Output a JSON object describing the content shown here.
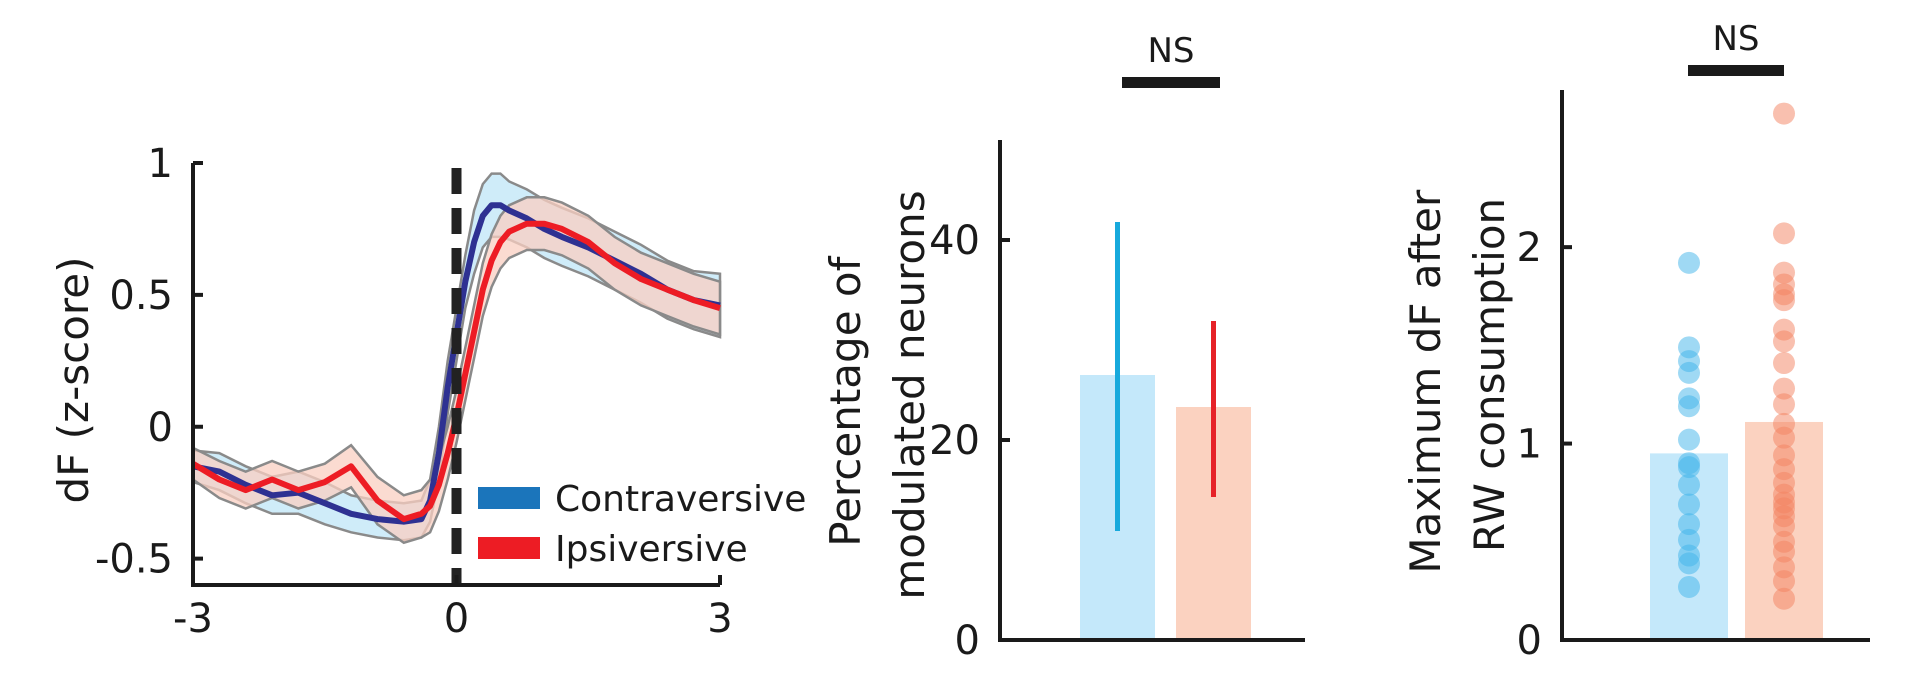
{
  "chart_data": [
    {
      "type": "line",
      "title": "",
      "xlabel": "",
      "ylabel": "dF (z-score)",
      "xlim": [
        -3,
        3
      ],
      "ylim": [
        -0.6,
        1.0
      ],
      "x_ticks": [
        -3,
        0,
        3
      ],
      "x_tick_labels": [
        "-3",
        "0",
        "3"
      ],
      "y_ticks": [
        -0.5,
        0,
        0.5,
        1
      ],
      "y_tick_labels": [
        "-0.5",
        "0",
        "0.5",
        "1"
      ],
      "event_line_x": 0,
      "legend_position": "bottom-right",
      "x": [
        -3.0,
        -2.7,
        -2.4,
        -2.1,
        -1.8,
        -1.5,
        -1.2,
        -0.9,
        -0.6,
        -0.4,
        -0.3,
        -0.2,
        -0.1,
        0.0,
        0.1,
        0.2,
        0.3,
        0.4,
        0.5,
        0.6,
        0.8,
        1.0,
        1.2,
        1.5,
        1.8,
        2.1,
        2.4,
        2.7,
        3.0
      ],
      "series": [
        {
          "name": "Contraversive",
          "color": "#1b75bb",
          "line_color": "#2e3192",
          "band_color": "#bfe6f7",
          "values": [
            -0.15,
            -0.17,
            -0.22,
            -0.26,
            -0.25,
            -0.29,
            -0.33,
            -0.35,
            -0.36,
            -0.35,
            -0.28,
            -0.1,
            0.15,
            0.35,
            0.55,
            0.7,
            0.8,
            0.84,
            0.84,
            0.82,
            0.79,
            0.75,
            0.72,
            0.68,
            0.63,
            0.58,
            0.52,
            0.48,
            0.46
          ],
          "lower": [
            -0.21,
            -0.24,
            -0.29,
            -0.33,
            -0.33,
            -0.37,
            -0.4,
            -0.42,
            -0.43,
            -0.42,
            -0.36,
            -0.2,
            0.05,
            0.25,
            0.45,
            0.58,
            0.68,
            0.72,
            0.72,
            0.71,
            0.68,
            0.64,
            0.61,
            0.57,
            0.52,
            0.47,
            0.41,
            0.37,
            0.34
          ],
          "upper": [
            -0.09,
            -0.1,
            -0.15,
            -0.19,
            -0.17,
            -0.21,
            -0.26,
            -0.28,
            -0.29,
            -0.28,
            -0.2,
            0.0,
            0.25,
            0.45,
            0.65,
            0.82,
            0.92,
            0.96,
            0.96,
            0.93,
            0.9,
            0.86,
            0.83,
            0.79,
            0.74,
            0.69,
            0.63,
            0.59,
            0.58
          ]
        },
        {
          "name": "Ipsiversive",
          "color": "#ed1c24",
          "line_color": "#ed1c24",
          "band_color": "#f9cfc2",
          "values": [
            -0.14,
            -0.2,
            -0.24,
            -0.2,
            -0.24,
            -0.21,
            -0.15,
            -0.28,
            -0.35,
            -0.33,
            -0.3,
            -0.22,
            -0.1,
            0.04,
            0.2,
            0.36,
            0.52,
            0.63,
            0.7,
            0.74,
            0.77,
            0.77,
            0.75,
            0.7,
            0.62,
            0.56,
            0.52,
            0.48,
            0.45
          ],
          "lower": [
            -0.2,
            -0.27,
            -0.31,
            -0.27,
            -0.31,
            -0.28,
            -0.23,
            -0.37,
            -0.44,
            -0.42,
            -0.4,
            -0.32,
            -0.2,
            -0.06,
            0.1,
            0.26,
            0.42,
            0.53,
            0.6,
            0.64,
            0.67,
            0.67,
            0.65,
            0.6,
            0.52,
            0.46,
            0.42,
            0.38,
            0.35
          ],
          "upper": [
            -0.08,
            -0.13,
            -0.17,
            -0.13,
            -0.17,
            -0.14,
            -0.07,
            -0.19,
            -0.26,
            -0.24,
            -0.2,
            -0.12,
            0.0,
            0.14,
            0.3,
            0.46,
            0.62,
            0.73,
            0.8,
            0.84,
            0.87,
            0.87,
            0.85,
            0.8,
            0.72,
            0.66,
            0.62,
            0.58,
            0.55
          ]
        }
      ]
    },
    {
      "type": "bar",
      "title": "",
      "xlabel": "",
      "ylabel": "Percentage of modulated neurons",
      "ylabel_lines": [
        "Percentage of",
        "modulated neurons"
      ],
      "ylim": [
        0,
        50
      ],
      "y_ticks": [
        0,
        20,
        40
      ],
      "y_tick_labels": [
        "0",
        "20",
        "40"
      ],
      "categories": [
        "Contraversive",
        "Ipsiversive"
      ],
      "values": [
        26.5,
        23.3
      ],
      "error_low": [
        10.9,
        14.3
      ],
      "error_high": [
        41.8,
        31.9
      ],
      "bar_colors": [
        "#c4e8fa",
        "#fbd2c0"
      ],
      "error_colors": [
        "#17a9dc",
        "#e62228"
      ],
      "significance": "NS"
    },
    {
      "type": "bar",
      "title": "",
      "xlabel": "",
      "ylabel": "Maximum dF after RW consumption",
      "ylabel_lines": [
        "Maximum dF after",
        "RW consumption"
      ],
      "ylim": [
        0,
        2.8
      ],
      "y_ticks": [
        0,
        1,
        2
      ],
      "y_tick_labels": [
        "0",
        "1",
        "2"
      ],
      "categories": [
        "Contraversive",
        "Ipsiversive"
      ],
      "values": [
        0.95,
        1.11
      ],
      "bar_colors": [
        "#c4e8fa",
        "#fbd2c0"
      ],
      "point_colors": [
        "#40b3ea",
        "#f4825f"
      ],
      "points": [
        [
          1.92,
          1.49,
          1.42,
          1.36,
          1.23,
          1.19,
          1.02,
          0.9,
          0.88,
          0.79,
          0.69,
          0.59,
          0.51,
          0.43,
          0.39,
          0.27
        ],
        [
          2.68,
          2.07,
          1.87,
          1.81,
          1.76,
          1.73,
          1.58,
          1.52,
          1.41,
          1.28,
          1.2,
          1.1,
          1.03,
          0.94,
          0.87,
          0.8,
          0.74,
          0.7,
          0.67,
          0.63,
          0.58,
          0.5,
          0.45,
          0.37,
          0.3,
          0.21
        ]
      ],
      "significance": "NS"
    }
  ]
}
